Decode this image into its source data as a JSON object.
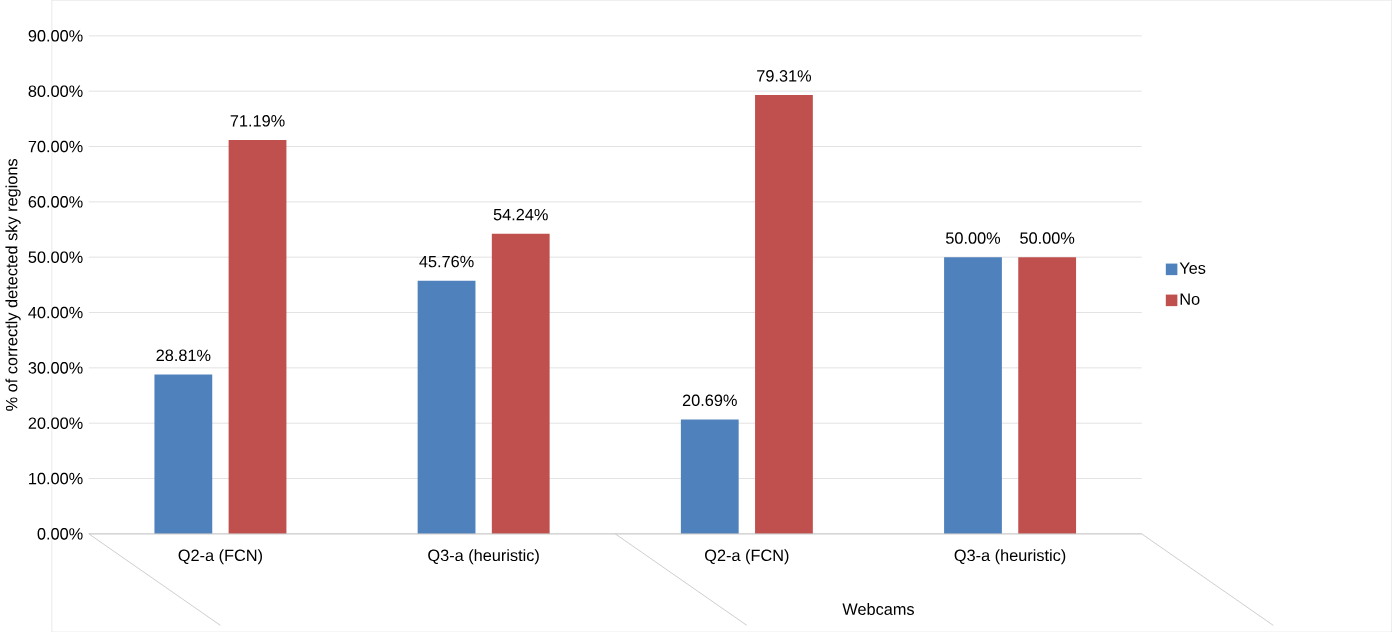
{
  "chart_data": {
    "type": "bar",
    "ylabel": "% of correctly detected sky regions",
    "categories": [
      "Q2-a (FCN)",
      "Q3-a (heuristic)",
      "Q2-a (FCN)",
      "Q3-a (heuristic)"
    ],
    "series": [
      {
        "name": "Yes",
        "color": "#4f81bd",
        "values": [
          28.81,
          45.76,
          20.69,
          50.0
        ],
        "value_labels": [
          "28.81%",
          "45.76%",
          "20.69%",
          "50.00%"
        ]
      },
      {
        "name": "No",
        "color": "#c0504d",
        "values": [
          71.19,
          54.24,
          79.31,
          50.0
        ],
        "value_labels": [
          "71.19%",
          "54.24%",
          "79.31%",
          "50.00%"
        ]
      }
    ],
    "ylim": [
      0,
      90
    ],
    "yticks": [
      {
        "value": 0,
        "label": "0.00%"
      },
      {
        "value": 10,
        "label": "10.00%"
      },
      {
        "value": 20,
        "label": "20.00%"
      },
      {
        "value": 30,
        "label": "30.00%"
      },
      {
        "value": 40,
        "label": "40.00%"
      },
      {
        "value": 50,
        "label": "50.00%"
      },
      {
        "value": 60,
        "label": "60.00%"
      },
      {
        "value": 70,
        "label": "70.00%"
      },
      {
        "value": 80,
        "label": "80.00%"
      },
      {
        "value": 90,
        "label": "90.00%"
      }
    ],
    "annotations": [
      "Webcams"
    ],
    "grid": "y",
    "legend": "right"
  }
}
